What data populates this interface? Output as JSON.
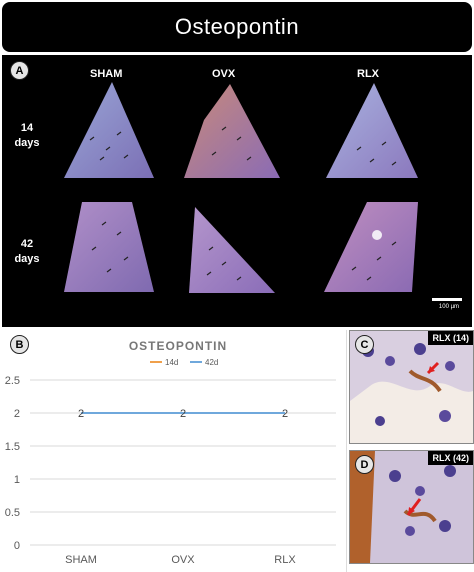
{
  "title": "Osteopontin",
  "panel_a": {
    "badge": "A",
    "columns": [
      "SHAM",
      "OVX",
      "RLX"
    ],
    "rows": [
      [
        "14",
        "days"
      ],
      [
        "42",
        "days"
      ]
    ],
    "scale_label": "100 µm"
  },
  "panel_b": {
    "badge": "B"
  },
  "panel_c": {
    "badge": "C",
    "tag": "RLX (14)"
  },
  "panel_d": {
    "badge": "D",
    "tag": "RLX (42)"
  },
  "chart_data": {
    "type": "line",
    "title": "OSTEOPONTIN",
    "categories": [
      "SHAM",
      "OVX",
      "RLX"
    ],
    "series": [
      {
        "name": "14d",
        "values": [
          2,
          2,
          2
        ],
        "color": "#f0a04b"
      },
      {
        "name": "42d",
        "values": [
          2,
          2,
          2
        ],
        "color": "#6fa8dc"
      }
    ],
    "data_labels": [
      "2",
      "2",
      "2"
    ],
    "yticks": [
      "0",
      "0.5",
      "1",
      "1.5",
      "2",
      "2.5"
    ],
    "ylim": [
      0,
      2.5
    ],
    "grid": true,
    "legend": "top"
  }
}
